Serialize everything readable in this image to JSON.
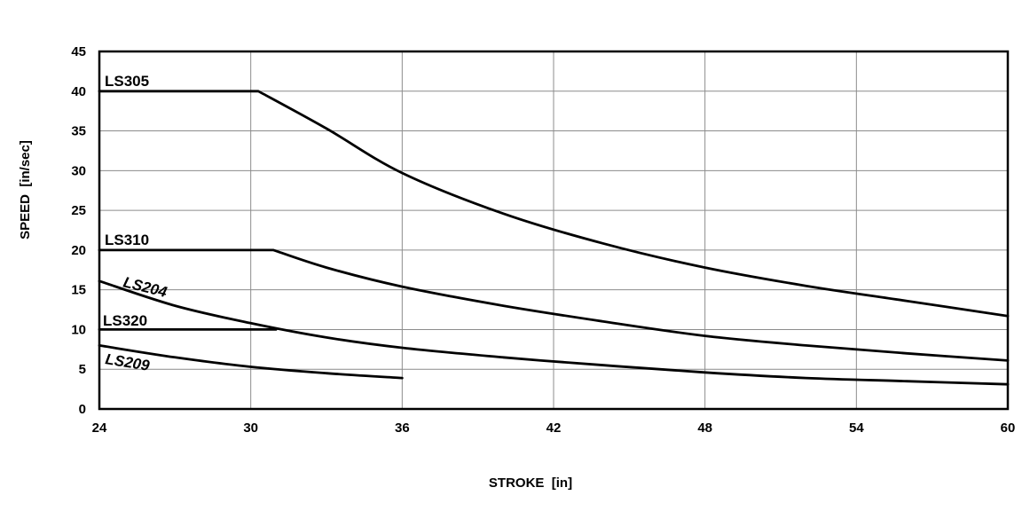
{
  "chart_data": {
    "type": "line",
    "title": "",
    "xlabel": "STROKE  [in]",
    "ylabel": "SPEED  [in/sec]",
    "xlim": [
      24,
      60
    ],
    "ylim": [
      0,
      45
    ],
    "xticks": [
      24,
      30,
      36,
      42,
      48,
      54,
      60
    ],
    "yticks": [
      0,
      5,
      10,
      15,
      20,
      25,
      30,
      35,
      40,
      45
    ],
    "grid": true,
    "series": [
      {
        "name": "LS305",
        "x": [
          24,
          30.3,
          33,
          36,
          40,
          44,
          48,
          52,
          56,
          60
        ],
        "y": [
          40,
          40,
          35.3,
          29.7,
          24.6,
          20.8,
          17.8,
          15.5,
          13.6,
          11.7
        ]
      },
      {
        "name": "LS310",
        "x": [
          24,
          30.9,
          33,
          36,
          40,
          44,
          48,
          52,
          56,
          60
        ],
        "y": [
          20,
          20,
          17.8,
          15.4,
          13.0,
          11.0,
          9.2,
          8.0,
          7.0,
          6.1
        ]
      },
      {
        "name": "LS204",
        "x": [
          24,
          27,
          30,
          33,
          36,
          40,
          44,
          48,
          52,
          56,
          60
        ],
        "y": [
          16.1,
          13.0,
          10.8,
          9.0,
          7.7,
          6.5,
          5.5,
          4.6,
          3.9,
          3.5,
          3.1
        ]
      },
      {
        "name": "LS320",
        "x": [
          24,
          31
        ],
        "y": [
          10,
          10
        ]
      },
      {
        "name": "LS209",
        "x": [
          24,
          27,
          30,
          33,
          36
        ],
        "y": [
          8.0,
          6.5,
          5.3,
          4.5,
          3.9
        ]
      }
    ]
  }
}
